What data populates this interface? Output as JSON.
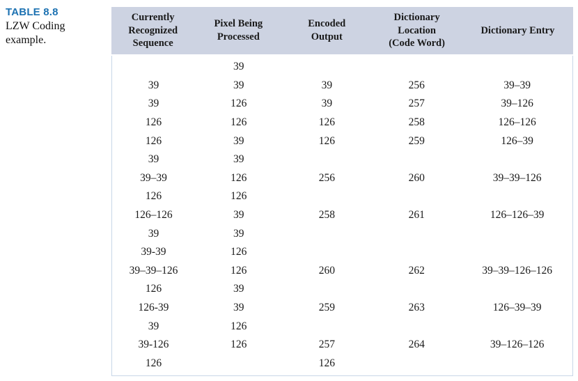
{
  "caption": {
    "label": "TABLE 8.8",
    "text": "LZW Coding example."
  },
  "colors": {
    "header_bg": "#cdd3e2",
    "table_border": "#c8d6e8",
    "caption_accent": "#1d72b2",
    "text": "#1a1a1a"
  },
  "table": {
    "headers": [
      "Currently\nRecognized\nSequence",
      "Pixel Being\nProcessed",
      "Encoded\nOutput",
      "Dictionary\nLocation\n(Code Word)",
      "Dictionary Entry"
    ],
    "rows": [
      [
        "",
        "39",
        "",
        "",
        ""
      ],
      [
        "39",
        "39",
        "39",
        "256",
        "39–39"
      ],
      [
        "39",
        "126",
        "39",
        "257",
        "39–126"
      ],
      [
        "126",
        "126",
        "126",
        "258",
        "126–126"
      ],
      [
        "126",
        "39",
        "126",
        "259",
        "126–39"
      ],
      [
        "39",
        "39",
        "",
        "",
        ""
      ],
      [
        "39–39",
        "126",
        "256",
        "260",
        "39–39–126"
      ],
      [
        "126",
        "126",
        "",
        "",
        ""
      ],
      [
        "126–126",
        "39",
        "258",
        "261",
        "126–126–39"
      ],
      [
        "39",
        "39",
        "",
        "",
        ""
      ],
      [
        "39-39",
        "126",
        "",
        "",
        ""
      ],
      [
        "39–39–126",
        "126",
        "260",
        "262",
        "39–39–126–126"
      ],
      [
        "126",
        "39",
        "",
        "",
        ""
      ],
      [
        "126-39",
        "39",
        "259",
        "263",
        "126–39–39"
      ],
      [
        "39",
        "126",
        "",
        "",
        ""
      ],
      [
        "39-126",
        "126",
        "257",
        "264",
        "39–126–126"
      ],
      [
        "126",
        "",
        "126",
        "",
        ""
      ]
    ]
  }
}
